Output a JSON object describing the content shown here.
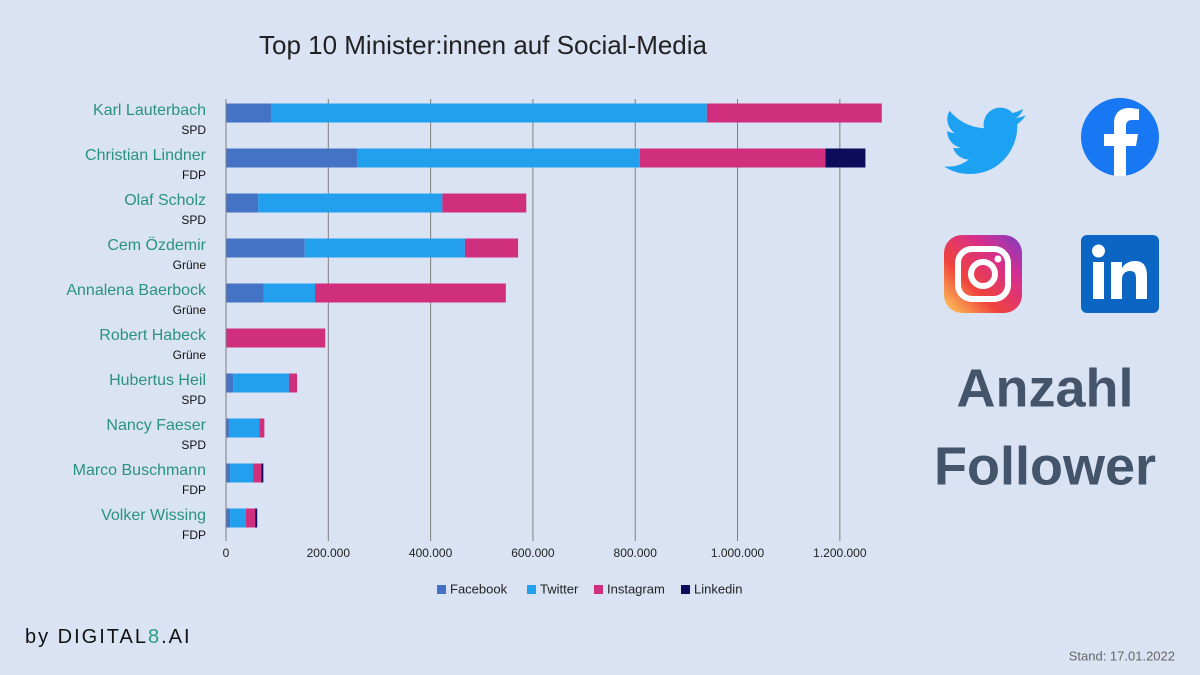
{
  "chart_data": {
    "type": "stacked-bar-horizontal",
    "title": "Top 10 Minister:innen auf Social-Media",
    "categories": [
      "Karl Lauterbach",
      "Christian Lindner",
      "Olaf Scholz",
      "Cem Özdemir",
      "Annalena Baerbock",
      "Robert Habeck",
      "Hubertus Heil",
      "Nancy Faeser",
      "Marco Buschmann",
      "Volker Wissing"
    ],
    "parties": [
      "SPD",
      "FDP",
      "SPD",
      "Grüne",
      "Grüne",
      "Grüne",
      "SPD",
      "SPD",
      "FDP",
      "FDP"
    ],
    "series": [
      {
        "name": "Facebook",
        "color": "#4472c4",
        "values": [
          88000,
          256000,
          63000,
          154000,
          74000,
          0,
          14000,
          6000,
          8000,
          8000
        ]
      },
      {
        "name": "Twitter",
        "color": "#22a0ee",
        "values": [
          852000,
          553000,
          360000,
          313000,
          100000,
          0,
          109000,
          59000,
          45000,
          31000
        ]
      },
      {
        "name": "Instagram",
        "color": "#cf2f7c",
        "values": [
          342000,
          363000,
          164000,
          104000,
          373000,
          194000,
          16000,
          10000,
          16000,
          18000
        ]
      },
      {
        "name": "Linkedin",
        "color": "#0d0b5c",
        "values": [
          0,
          78000,
          0,
          0,
          0,
          0,
          0,
          0,
          4000,
          4000
        ]
      }
    ],
    "xlim": [
      0,
      1300000
    ],
    "xticks": [
      0,
      {
        "value": 200000,
        "label": "200.000"
      },
      {
        "value": 400000,
        "label": "400.000"
      },
      {
        "value": 600000,
        "label": "600.000"
      },
      {
        "value": 800000,
        "label": "800.000"
      },
      {
        "value": 1000000,
        "label": "1.000.000"
      },
      {
        "value": 1200000,
        "label": "1.200.000"
      }
    ],
    "grid": true,
    "legend": "bottom"
  },
  "side_text": [
    "Anzahl",
    "Follower"
  ],
  "footer": {
    "brand": [
      "by DIGITAL",
      "8",
      ".AI"
    ],
    "date": "Stand: 17.01.2022"
  }
}
